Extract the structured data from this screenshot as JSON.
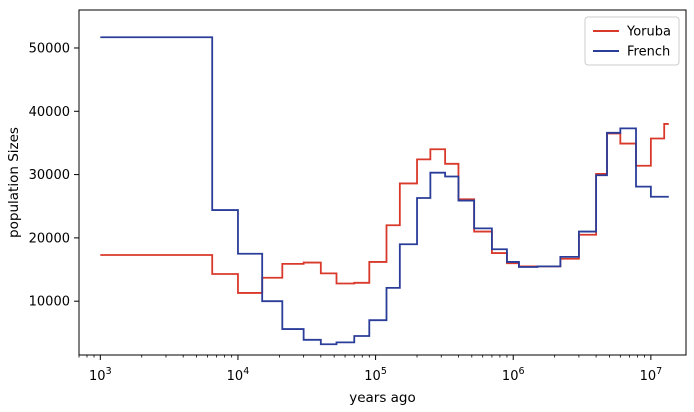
{
  "chart_data": {
    "type": "line",
    "step": true,
    "xscale": "log",
    "xlabel": "years ago",
    "ylabel": "population Sizes",
    "xlim": [
      700,
      18000000
    ],
    "ylim": [
      1500,
      56000
    ],
    "x_ticks": [
      {
        "value": 1000,
        "base": "10",
        "exp": "3"
      },
      {
        "value": 10000,
        "base": "10",
        "exp": "4"
      },
      {
        "value": 100000,
        "base": "10",
        "exp": "5"
      },
      {
        "value": 1000000,
        "base": "10",
        "exp": "6"
      },
      {
        "value": 10000000,
        "base": "10",
        "exp": "7"
      }
    ],
    "y_ticks": [
      {
        "value": 10000,
        "label": "10000"
      },
      {
        "value": 20000,
        "label": "20000"
      },
      {
        "value": 30000,
        "label": "30000"
      },
      {
        "value": 40000,
        "label": "40000"
      },
      {
        "value": 50000,
        "label": "50000"
      }
    ],
    "grid": false,
    "legend_position": "top-right",
    "series": [
      {
        "name": "Yoruba",
        "color": "#d9392b",
        "x": [
          1000,
          6500,
          10000,
          15000,
          21000,
          30000,
          40000,
          52000,
          70000,
          90000,
          120000,
          150000,
          200000,
          250000,
          320000,
          400000,
          520000,
          700000,
          900000,
          1100000,
          1500000,
          2200000,
          3000000,
          4000000,
          4800000,
          6000000,
          7800000,
          10000000,
          12500000
        ],
        "y": [
          17300,
          14300,
          11300,
          13700,
          15900,
          16100,
          14400,
          12800,
          12900,
          16200,
          22000,
          28600,
          32400,
          34000,
          31700,
          26100,
          21000,
          17600,
          16000,
          15500,
          15500,
          16700,
          20500,
          30100,
          36500,
          34900,
          31400,
          35700,
          38000
        ]
      },
      {
        "name": "French",
        "color": "#2a3d99",
        "x": [
          1000,
          6500,
          10000,
          15000,
          21000,
          30000,
          40000,
          52000,
          70000,
          90000,
          120000,
          150000,
          200000,
          250000,
          320000,
          400000,
          520000,
          700000,
          900000,
          1100000,
          1500000,
          2200000,
          3000000,
          4000000,
          4800000,
          6000000,
          7800000,
          10000000,
          12500000
        ],
        "y": [
          51700,
          24400,
          17500,
          10000,
          5600,
          3900,
          3200,
          3500,
          4500,
          7000,
          12100,
          19000,
          26300,
          30300,
          29700,
          25900,
          21500,
          18200,
          16200,
          15400,
          15500,
          17000,
          21000,
          29900,
          36600,
          37300,
          28100,
          26500,
          26500
        ]
      }
    ]
  }
}
